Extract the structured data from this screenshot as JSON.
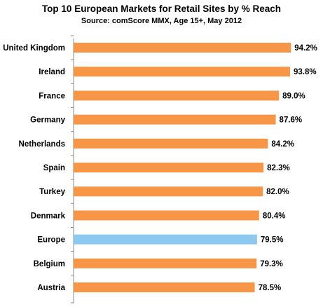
{
  "chart_data": {
    "type": "bar",
    "orientation": "horizontal",
    "title": "Top 10 European Markets for Retail Sites by % Reach",
    "subtitle": "Source: comScore MMX, Age 15+, May 2012",
    "categories": [
      "United Kingdom",
      "Ireland",
      "France",
      "Germany",
      "Netherlands",
      "Spain",
      "Turkey",
      "Denmark",
      "Europe",
      "Belgium",
      "Austria"
    ],
    "values": [
      94.2,
      93.8,
      89.0,
      87.6,
      84.2,
      82.3,
      82.0,
      80.4,
      79.5,
      79.3,
      78.5
    ],
    "value_labels": [
      "94.2%",
      "93.8%",
      "89.0%",
      "87.6%",
      "84.2%",
      "82.3%",
      "82.0%",
      "80.4%",
      "79.5%",
      "79.3%",
      "78.5%"
    ],
    "highlight_category": "Europe",
    "colors": {
      "bar": "#F79646",
      "highlight": "#8DC8EF",
      "axis": "#888888"
    },
    "xlim": [
      0,
      100
    ],
    "grid": false,
    "legend": "none"
  }
}
